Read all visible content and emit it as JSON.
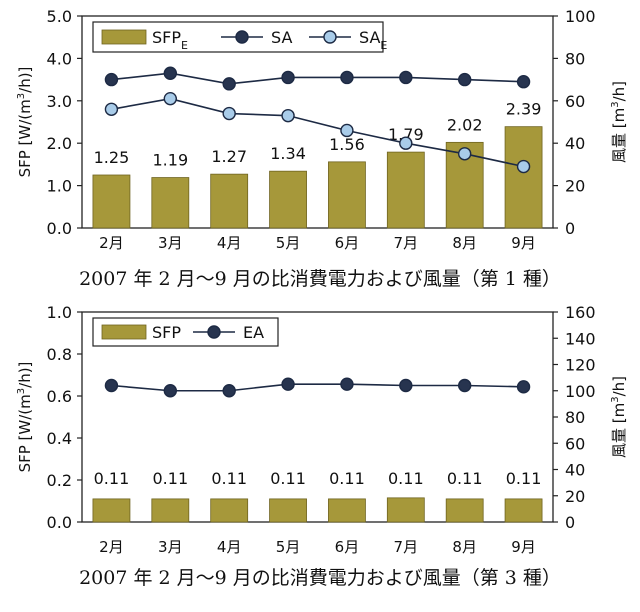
{
  "chart_data": [
    {
      "type": "bar",
      "categories": [
        "2月",
        "3月",
        "4月",
        "5月",
        "6月",
        "7月",
        "8月",
        "9月"
      ],
      "ylabel": "SFP [W/(m³/h)]",
      "ylabel_parts": [
        "SFP [W/(m",
        "3",
        "/h)]"
      ],
      "y2label": "風量 [m³/h]",
      "y2label_parts": [
        "風量 [m",
        "3",
        "/h]"
      ],
      "ylim": [
        0,
        5
      ],
      "y2lim": [
        0,
        100
      ],
      "yticks": [
        "0.0",
        "1.0",
        "2.0",
        "3.0",
        "4.0",
        "5.0"
      ],
      "y2ticks": [
        "0",
        "20",
        "40",
        "60",
        "80",
        "100"
      ],
      "series": [
        {
          "name": "SFP_E",
          "kind": "bar",
          "axis": "left",
          "values": [
            1.25,
            1.19,
            1.27,
            1.34,
            1.56,
            1.79,
            2.02,
            2.39
          ],
          "labels": [
            "1.25",
            "1.19",
            "1.27",
            "1.34",
            "1.56",
            "1.79",
            "2.02",
            "2.39"
          ]
        },
        {
          "name": "SA",
          "kind": "line",
          "axis": "right",
          "marker": "dark",
          "values": [
            70,
            73,
            68,
            71,
            71,
            71,
            70,
            69
          ]
        },
        {
          "name": "SA_E",
          "kind": "line",
          "axis": "right",
          "marker": "light",
          "values": [
            56,
            61,
            54,
            53,
            46,
            40,
            35,
            29
          ]
        }
      ],
      "legend": [
        {
          "base": "SFP",
          "sub": "E",
          "kind": "bar"
        },
        {
          "base": "SA",
          "sub": "",
          "kind": "dark"
        },
        {
          "base": "SA",
          "sub": "E",
          "kind": "light"
        }
      ],
      "legend_position": "top",
      "caption": "2007 年 2 月～9 月の比消費電力および風量（第 1 種）"
    },
    {
      "type": "bar",
      "categories": [
        "2月",
        "3月",
        "4月",
        "5月",
        "6月",
        "7月",
        "8月",
        "9月"
      ],
      "ylabel": "SFP [W/(m³/h)]",
      "ylabel_parts": [
        "SFP [W/(m",
        "3",
        "/h)]"
      ],
      "y2label": "風量 [m³/h]",
      "y2label_parts": [
        "風量 [m",
        "3",
        "/h]"
      ],
      "ylim": [
        0,
        1
      ],
      "y2lim": [
        0,
        160
      ],
      "yticks": [
        "0.0",
        "0.2",
        "0.4",
        "0.6",
        "0.8",
        "1.0"
      ],
      "y2ticks": [
        "0",
        "20",
        "40",
        "60",
        "80",
        "100",
        "120",
        "140",
        "160"
      ],
      "series": [
        {
          "name": "SFP",
          "kind": "bar",
          "axis": "left",
          "values": [
            0.11,
            0.11,
            0.11,
            0.11,
            0.11,
            0.115,
            0.11,
            0.11
          ],
          "labels": [
            "0.11",
            "0.11",
            "0.11",
            "0.11",
            "0.11",
            "0.11",
            "0.11",
            "0.11"
          ]
        },
        {
          "name": "EA",
          "kind": "line",
          "axis": "right",
          "marker": "dark",
          "values": [
            104,
            100,
            100,
            105,
            105,
            104,
            104,
            103
          ]
        }
      ],
      "legend": [
        {
          "base": "SFP",
          "sub": "",
          "kind": "bar"
        },
        {
          "base": "EA",
          "sub": "",
          "kind": "dark"
        }
      ],
      "legend_position": "top",
      "caption": "2007 年 2 月～9 月の比消費電力および風量（第 3 種）"
    }
  ],
  "colors": {
    "bar_fill": "#a6983a",
    "bar_stroke": "#6f6420",
    "dark_marker": "#27344f",
    "light_marker": "#a9cce9",
    "line": "#1d2a44",
    "axis": "#222222"
  }
}
